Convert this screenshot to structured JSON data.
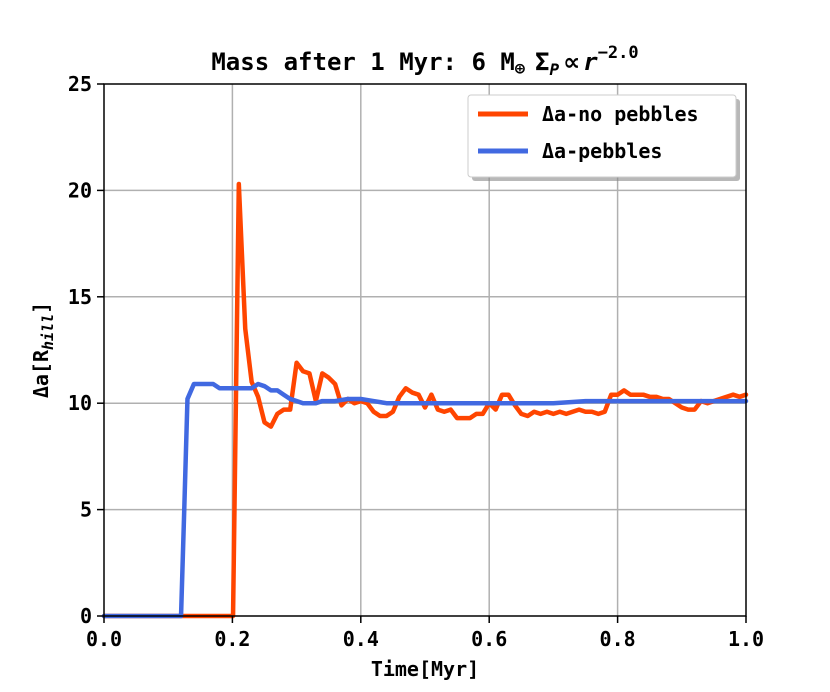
{
  "chart_data": {
    "type": "line",
    "title": "Mass after 1 Myr: 6 M",
    "title_symbol": "⊕",
    "title_suffix": "Σ",
    "title_sub": "P",
    "title_prop": "∝",
    "title_var": "r",
    "title_exp": "−2.0",
    "xlabel": "Time[Myr]",
    "ylabel": "Δa[R",
    "ylabel_sub": "hill",
    "ylabel_end": "]",
    "xlim": [
      0.0,
      1.0
    ],
    "ylim": [
      0,
      25
    ],
    "xticks": [
      "0.0",
      "0.2",
      "0.4",
      "0.6",
      "0.8",
      "1.0"
    ],
    "yticks": [
      "0",
      "5",
      "10",
      "15",
      "20",
      "25"
    ],
    "grid": true,
    "legend_position": "top-right",
    "series": [
      {
        "name": "Δa-no pebbles",
        "color": "#ff4500",
        "x": [
          0.0,
          0.2,
          0.201,
          0.21,
          0.22,
          0.23,
          0.24,
          0.25,
          0.26,
          0.27,
          0.28,
          0.29,
          0.3,
          0.31,
          0.32,
          0.33,
          0.34,
          0.35,
          0.36,
          0.37,
          0.38,
          0.39,
          0.4,
          0.41,
          0.42,
          0.43,
          0.44,
          0.45,
          0.46,
          0.47,
          0.48,
          0.49,
          0.5,
          0.51,
          0.52,
          0.53,
          0.54,
          0.55,
          0.56,
          0.57,
          0.58,
          0.59,
          0.6,
          0.61,
          0.62,
          0.63,
          0.64,
          0.65,
          0.66,
          0.67,
          0.68,
          0.69,
          0.7,
          0.71,
          0.72,
          0.73,
          0.74,
          0.75,
          0.76,
          0.77,
          0.78,
          0.79,
          0.8,
          0.81,
          0.82,
          0.83,
          0.84,
          0.85,
          0.86,
          0.87,
          0.88,
          0.89,
          0.9,
          0.91,
          0.92,
          0.93,
          0.94,
          0.95,
          0.96,
          0.97,
          0.98,
          0.99,
          1.0
        ],
        "y": [
          0.0,
          0.0,
          0.0,
          20.3,
          13.5,
          11.0,
          10.3,
          9.1,
          8.9,
          9.5,
          9.7,
          9.7,
          11.9,
          11.5,
          11.4,
          10.1,
          11.4,
          11.2,
          10.9,
          9.9,
          10.2,
          10.0,
          10.1,
          10.0,
          9.6,
          9.4,
          9.4,
          9.6,
          10.3,
          10.7,
          10.5,
          10.4,
          9.8,
          10.4,
          9.7,
          9.6,
          9.7,
          9.3,
          9.3,
          9.3,
          9.5,
          9.5,
          10.0,
          9.7,
          10.4,
          10.4,
          9.9,
          9.5,
          9.4,
          9.6,
          9.5,
          9.6,
          9.5,
          9.6,
          9.5,
          9.6,
          9.7,
          9.6,
          9.6,
          9.5,
          9.6,
          10.4,
          10.4,
          10.6,
          10.4,
          10.4,
          10.4,
          10.3,
          10.3,
          10.2,
          10.2,
          10.0,
          9.8,
          9.7,
          9.7,
          10.1,
          10.0,
          10.1,
          10.2,
          10.3,
          10.4,
          10.3,
          10.4
        ]
      },
      {
        "name": "Δa-pebbles",
        "color": "#4169e1",
        "x": [
          0.0,
          0.12,
          0.125,
          0.13,
          0.14,
          0.15,
          0.16,
          0.17,
          0.18,
          0.19,
          0.2,
          0.21,
          0.22,
          0.23,
          0.24,
          0.25,
          0.26,
          0.27,
          0.28,
          0.29,
          0.3,
          0.31,
          0.32,
          0.33,
          0.34,
          0.35,
          0.36,
          0.38,
          0.4,
          0.42,
          0.44,
          0.46,
          0.5,
          0.55,
          0.6,
          0.65,
          0.7,
          0.75,
          0.8,
          0.85,
          0.9,
          0.92,
          0.94,
          0.96,
          1.0
        ],
        "y": [
          0.0,
          0.0,
          5.0,
          10.2,
          10.9,
          10.9,
          10.9,
          10.9,
          10.7,
          10.7,
          10.7,
          10.7,
          10.7,
          10.7,
          10.9,
          10.8,
          10.6,
          10.6,
          10.4,
          10.2,
          10.1,
          10.0,
          10.0,
          10.0,
          10.1,
          10.1,
          10.1,
          10.2,
          10.2,
          10.1,
          10.0,
          10.0,
          10.0,
          10.0,
          10.0,
          10.0,
          10.0,
          10.1,
          10.1,
          10.1,
          10.1,
          10.1,
          10.1,
          10.1,
          10.1
        ]
      }
    ]
  }
}
